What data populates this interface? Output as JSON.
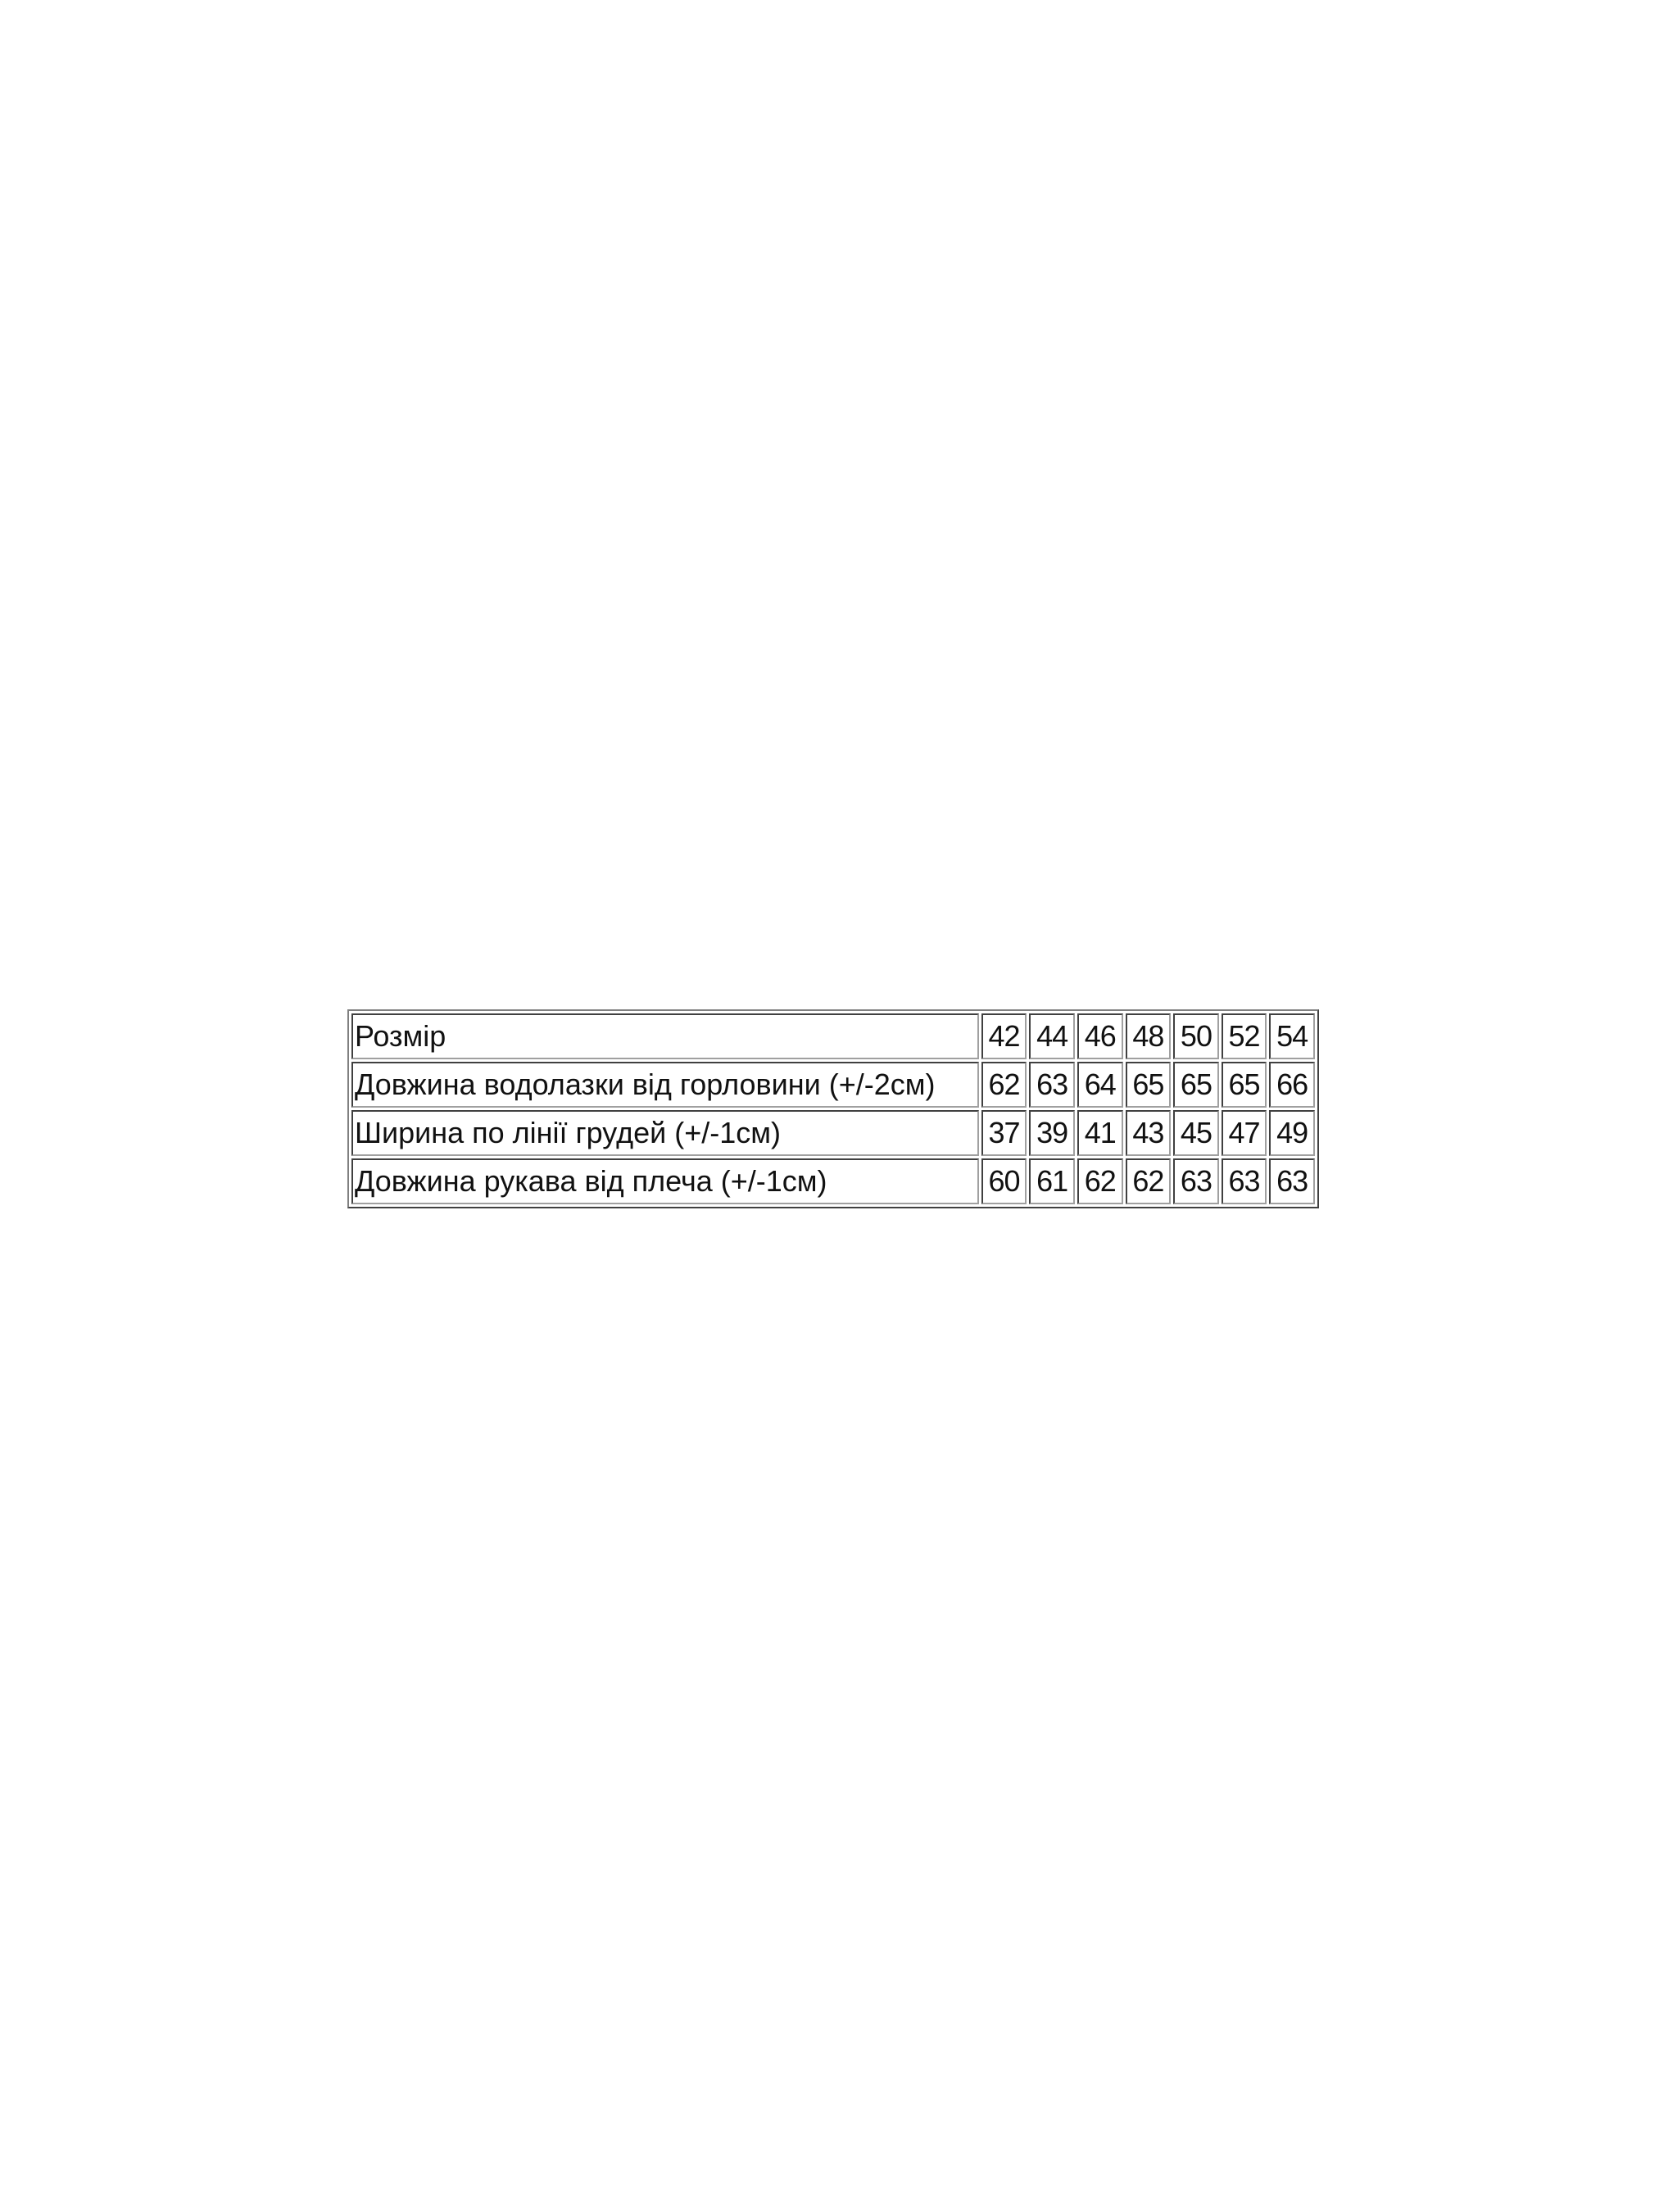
{
  "table": {
    "rows": [
      {
        "label": "Розмір",
        "values": [
          "42",
          "44",
          "46",
          "48",
          "50",
          "52",
          "54"
        ]
      },
      {
        "label": "Довжина водолазки від горловини (+/-2см)",
        "values": [
          "62",
          "63",
          "64",
          "65",
          "65",
          "65",
          "66"
        ]
      },
      {
        "label": "Ширина по лінії грудей (+/-1см)",
        "values": [
          "37",
          "39",
          "41",
          "43",
          "45",
          "47",
          "49"
        ]
      },
      {
        "label": "Довжина рукава від плеча (+/-1см)",
        "values": [
          "60",
          "61",
          "62",
          "62",
          "63",
          "63",
          "63"
        ]
      }
    ]
  }
}
